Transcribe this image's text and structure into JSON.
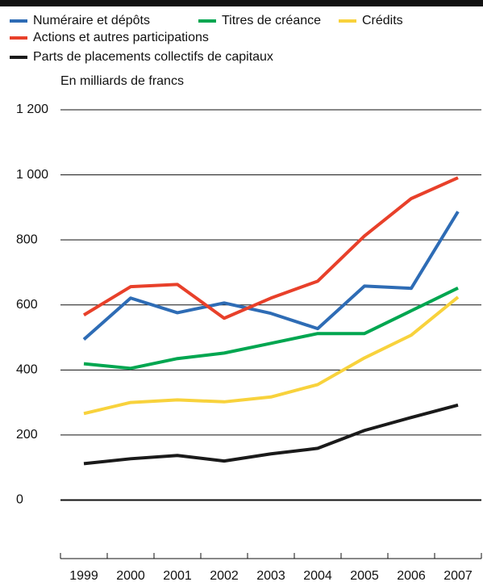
{
  "chart_data": {
    "type": "line",
    "y_label": "En milliards de francs",
    "categories": [
      "1999",
      "2000",
      "2001",
      "2002",
      "2003",
      "2004",
      "2005",
      "2006",
      "2007"
    ],
    "series": [
      {
        "name": "Numéraire et dépôts",
        "color": "#2e6cb5",
        "values": [
          494,
          621,
          576,
          606,
          574,
          527,
          658,
          651,
          887
        ]
      },
      {
        "name": "Titres de créance",
        "color": "#00a650",
        "values": [
          419,
          405,
          435,
          452,
          482,
          512,
          512,
          582,
          652
        ]
      },
      {
        "name": "Crédits",
        "color": "#f8d23c",
        "values": [
          266,
          300,
          308,
          302,
          317,
          355,
          437,
          507,
          624
        ]
      },
      {
        "name": "Actions et autres participations",
        "color": "#e8402a",
        "values": [
          569,
          656,
          663,
          559,
          621,
          673,
          812,
          927,
          991
        ]
      },
      {
        "name": "Parts de placements collectifs de capitaux",
        "color": "#1a1a1a",
        "values": [
          112,
          127,
          137,
          120,
          142,
          159,
          214,
          254,
          292
        ]
      }
    ],
    "ylim": [
      -180,
      1200
    ],
    "yticks": [
      0,
      200,
      400,
      600,
      800,
      {
        "value": 1000,
        "label": "1 000"
      },
      {
        "value": 1200,
        "label": "1 200"
      }
    ],
    "grid": true
  }
}
